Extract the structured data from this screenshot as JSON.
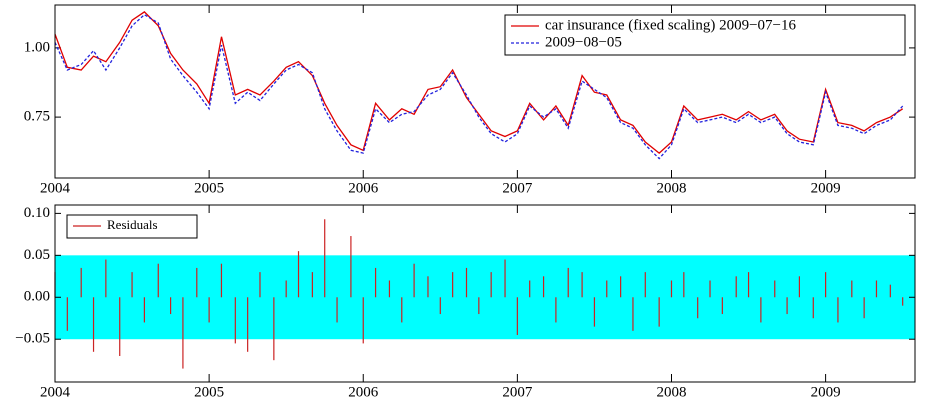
{
  "chart_data": [
    {
      "type": "line",
      "x": [
        2004,
        2004.08,
        2004.17,
        2004.25,
        2004.33,
        2004.42,
        2004.5,
        2004.58,
        2004.67,
        2004.75,
        2004.83,
        2004.92,
        2005,
        2005.08,
        2005.17,
        2005.25,
        2005.33,
        2005.42,
        2005.5,
        2005.58,
        2005.67,
        2005.75,
        2005.83,
        2005.92,
        2006,
        2006.08,
        2006.17,
        2006.25,
        2006.33,
        2006.42,
        2006.5,
        2006.58,
        2006.67,
        2006.75,
        2006.83,
        2006.92,
        2007,
        2007.08,
        2007.17,
        2007.25,
        2007.33,
        2007.42,
        2007.5,
        2007.58,
        2007.67,
        2007.75,
        2007.83,
        2007.92,
        2008,
        2008.08,
        2008.17,
        2008.25,
        2008.33,
        2008.42,
        2008.5,
        2008.58,
        2008.67,
        2008.75,
        2008.83,
        2008.92,
        2009,
        2009.08,
        2009.17,
        2009.25,
        2009.33,
        2009.42,
        2009.5
      ],
      "series": [
        {
          "name": "car insurance (fixed scaling) 2009−07−16",
          "color": "#e00000",
          "dash": false,
          "values": [
            1.05,
            0.93,
            0.92,
            0.97,
            0.95,
            1.02,
            1.1,
            1.13,
            1.08,
            0.98,
            0.92,
            0.87,
            0.8,
            1.04,
            0.83,
            0.85,
            0.83,
            0.88,
            0.93,
            0.95,
            0.9,
            0.8,
            0.72,
            0.65,
            0.63,
            0.8,
            0.74,
            0.78,
            0.76,
            0.85,
            0.86,
            0.92,
            0.82,
            0.76,
            0.7,
            0.68,
            0.7,
            0.8,
            0.74,
            0.79,
            0.72,
            0.9,
            0.84,
            0.83,
            0.74,
            0.72,
            0.66,
            0.62,
            0.66,
            0.79,
            0.74,
            0.75,
            0.76,
            0.74,
            0.77,
            0.74,
            0.76,
            0.7,
            0.67,
            0.66,
            0.85,
            0.73,
            0.72,
            0.7,
            0.73,
            0.75,
            0.78
          ]
        },
        {
          "name": "2009−08−05",
          "color": "#2222dd",
          "dash": true,
          "values": [
            1.02,
            0.92,
            0.94,
            0.99,
            0.92,
            1.0,
            1.08,
            1.12,
            1.09,
            0.96,
            0.9,
            0.84,
            0.78,
            1.01,
            0.8,
            0.84,
            0.81,
            0.87,
            0.92,
            0.94,
            0.91,
            0.78,
            0.7,
            0.63,
            0.62,
            0.78,
            0.73,
            0.76,
            0.77,
            0.83,
            0.85,
            0.91,
            0.83,
            0.75,
            0.69,
            0.66,
            0.69,
            0.79,
            0.75,
            0.78,
            0.71,
            0.88,
            0.85,
            0.82,
            0.73,
            0.71,
            0.65,
            0.6,
            0.65,
            0.78,
            0.73,
            0.74,
            0.75,
            0.73,
            0.76,
            0.73,
            0.75,
            0.69,
            0.66,
            0.65,
            0.84,
            0.72,
            0.71,
            0.69,
            0.72,
            0.74,
            0.79
          ]
        }
      ],
      "xlim": [
        2004,
        2009.58
      ],
      "xticks": [
        2004,
        2005,
        2006,
        2007,
        2008,
        2009
      ],
      "ylim": [
        0.53,
        1.155
      ],
      "yticks": [
        {
          "value": 0.75,
          "label": "0.75"
        },
        {
          "value": 1,
          "label": "1.00"
        }
      ],
      "legend": "upper right"
    },
    {
      "type": "bar",
      "x": [
        2004,
        2004.08,
        2004.17,
        2004.25,
        2004.33,
        2004.42,
        2004.5,
        2004.58,
        2004.67,
        2004.75,
        2004.83,
        2004.92,
        2005,
        2005.08,
        2005.17,
        2005.25,
        2005.33,
        2005.42,
        2005.5,
        2005.58,
        2005.67,
        2005.75,
        2005.83,
        2005.92,
        2006,
        2006.08,
        2006.17,
        2006.25,
        2006.33,
        2006.42,
        2006.5,
        2006.58,
        2006.67,
        2006.75,
        2006.83,
        2006.92,
        2007,
        2007.08,
        2007.17,
        2007.25,
        2007.33,
        2007.42,
        2007.5,
        2007.58,
        2007.67,
        2007.75,
        2007.83,
        2007.92,
        2008,
        2008.08,
        2008.17,
        2008.25,
        2008.33,
        2008.42,
        2008.5,
        2008.58,
        2008.67,
        2008.75,
        2008.83,
        2008.92,
        2009,
        2009.08,
        2009.17,
        2009.25,
        2009.33,
        2009.42,
        2009.5
      ],
      "series": [
        {
          "name": "Residuals",
          "color": "#cc2222",
          "values": [
            0.03,
            -0.04,
            0.035,
            -0.065,
            0.045,
            -0.07,
            0.03,
            -0.03,
            0.04,
            -0.02,
            -0.085,
            0.035,
            -0.03,
            0.04,
            -0.055,
            -0.065,
            0.03,
            -0.075,
            0.02,
            0.055,
            0.03,
            0.093,
            -0.03,
            0.073,
            -0.055,
            0.035,
            0.02,
            -0.03,
            0.04,
            0.025,
            -0.02,
            0.03,
            0.035,
            -0.02,
            0.03,
            0.045,
            -0.045,
            0.02,
            0.025,
            -0.03,
            0.035,
            0.03,
            -0.035,
            0.02,
            0.025,
            -0.04,
            0.03,
            -0.035,
            0.02,
            0.03,
            -0.025,
            0.02,
            -0.02,
            0.025,
            0.03,
            -0.03,
            0.02,
            -0.02,
            0.025,
            -0.025,
            0.03,
            -0.03,
            0.02,
            -0.025,
            0.02,
            0.015,
            -0.01
          ]
        }
      ],
      "band": [
        -0.05,
        0.05
      ],
      "band_color": "#00ffff",
      "xlim": [
        2004,
        2009.58
      ],
      "xticks": [
        2004,
        2005,
        2006,
        2007,
        2008,
        2009
      ],
      "ylim": [
        -0.101,
        0.11
      ],
      "yticks": [
        {
          "value": -0.05,
          "label": "−0.05"
        },
        {
          "value": 0,
          "label": "0.00"
        },
        {
          "value": 0.05,
          "label": "0.05"
        },
        {
          "value": 0.1,
          "label": "0.10"
        }
      ],
      "legend": "upper left"
    }
  ]
}
